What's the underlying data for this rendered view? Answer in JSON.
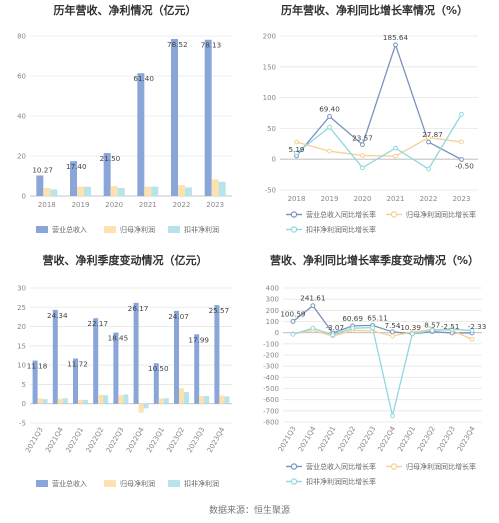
{
  "colors": {
    "revenue": "#8aa6d8",
    "netprofit": "#fde2b0",
    "deducted": "#b7e3ea",
    "revenue_line": "#7a93be",
    "netprofit_line": "#f6cf93",
    "deducted_line": "#8fd8df",
    "grid": "#e6e6e6",
    "axis": "#bbbbbb"
  },
  "chart_data": [
    {
      "type": "bar",
      "title": "历年营收、净利情况（亿元）",
      "categories": [
        "2018",
        "2019",
        "2020",
        "2021",
        "2022",
        "2023"
      ],
      "ylim": [
        0,
        80
      ],
      "yticks": [
        "0",
        "20",
        "40",
        "60",
        "80"
      ],
      "grid": true,
      "legend_position": "bottom",
      "series": [
        {
          "name": "营业总收入",
          "values": [
            10.27,
            17.4,
            21.5,
            61.4,
            78.52,
            78.13
          ],
          "labels": [
            "10.27",
            "17.40",
            "21.50",
            "61.40",
            "78.52",
            "78.13"
          ]
        },
        {
          "name": "归母净利润",
          "values": [
            4.0,
            4.7,
            5.0,
            4.6,
            5.5,
            8.3
          ]
        },
        {
          "name": "扣非净利润",
          "values": [
            3.3,
            4.6,
            4.0,
            4.7,
            4.3,
            7.1
          ]
        }
      ]
    },
    {
      "type": "line",
      "title": "历年营收、净利同比增长率情况（%）",
      "categories": [
        "2018",
        "2019",
        "2020",
        "2021",
        "2022",
        "2023"
      ],
      "ylim": [
        -50,
        200
      ],
      "yticks": [
        "-50",
        "0",
        "50",
        "100",
        "150",
        "200"
      ],
      "grid": true,
      "legend_position": "bottom",
      "series": [
        {
          "name": "营业总收入同比增长率",
          "values": [
            5.19,
            69.4,
            23.57,
            185.64,
            27.87,
            -0.5
          ],
          "labels": [
            "5.19",
            "69.40",
            "23.57",
            "185.64",
            "27.87",
            "-0.50"
          ]
        },
        {
          "name": "归母净利润同比增长率",
          "values": [
            28,
            13,
            6,
            5,
            35,
            28
          ]
        },
        {
          "name": "扣非净利润同比增长率",
          "values": [
            10,
            52,
            -14,
            18,
            -16,
            73
          ]
        }
      ]
    },
    {
      "type": "bar",
      "title": "营收、净利季度变动情况（亿元）",
      "categories": [
        "2021Q3",
        "2021Q4",
        "2022Q1",
        "2022Q2",
        "2022Q3",
        "2022Q4",
        "2023Q1",
        "2023Q2",
        "2023Q3",
        "2023Q4"
      ],
      "ylim": [
        -5,
        30
      ],
      "yticks": [
        "-5",
        "0",
        "5",
        "10",
        "15",
        "20",
        "25",
        "30"
      ],
      "grid": true,
      "legend_position": "bottom",
      "series": [
        {
          "name": "营业总收入",
          "values": [
            11.18,
            24.34,
            11.72,
            22.17,
            18.45,
            26.17,
            10.5,
            24.07,
            17.99,
            25.57
          ],
          "labels": [
            "11.18",
            "24.34",
            "11.72",
            "22.17",
            "18.45",
            "26.17",
            "10.50",
            "24.07",
            "17.99",
            "25.57"
          ]
        },
        {
          "name": "归母净利润",
          "values": [
            1.4,
            1.3,
            1.0,
            2.3,
            2.2,
            -2.3,
            1.4,
            4.0,
            2.0,
            2.1
          ]
        },
        {
          "name": "扣非净利润",
          "values": [
            1.2,
            1.4,
            1.0,
            2.2,
            2.4,
            -1.2,
            1.4,
            3.0,
            2.0,
            1.9
          ]
        }
      ]
    },
    {
      "type": "line",
      "title": "营收、净利同比增长率季度变动情况（%）",
      "categories": [
        "2021Q3",
        "2021Q4",
        "2022Q1",
        "2022Q2",
        "2022Q3",
        "2022Q4",
        "2023Q1",
        "2023Q2",
        "2023Q3",
        "2023Q4"
      ],
      "ylim": [
        -800,
        400
      ],
      "yticks": [
        "-800",
        "-700",
        "-600",
        "-500",
        "-400",
        "-300",
        "-200",
        "-100",
        "0",
        "100",
        "200",
        "300",
        "400"
      ],
      "grid": true,
      "legend_position": "bottom",
      "series": [
        {
          "name": "营业总收入同比增长率",
          "values": [
            100.59,
            241.61,
            -3.07,
            60.69,
            65.11,
            7.54,
            -10.39,
            8.57,
            -2.51,
            -2.33
          ],
          "labels": [
            "100.59",
            "241.61",
            "-3.07",
            "60.69",
            "65.11",
            "7.54",
            "-10.39",
            "8.57",
            "-2.51",
            "-2.33"
          ]
        },
        {
          "name": "归母净利润同比增长率",
          "values": [
            -10,
            20,
            -30,
            20,
            15,
            -30,
            5,
            30,
            20,
            -60
          ]
        },
        {
          "name": "扣非净利润同比增长率",
          "values": [
            -15,
            40,
            -20,
            40,
            45,
            -745,
            -10,
            20,
            30,
            20
          ]
        }
      ]
    }
  ],
  "footer": {
    "source": "数据来源：恒生聚源"
  }
}
